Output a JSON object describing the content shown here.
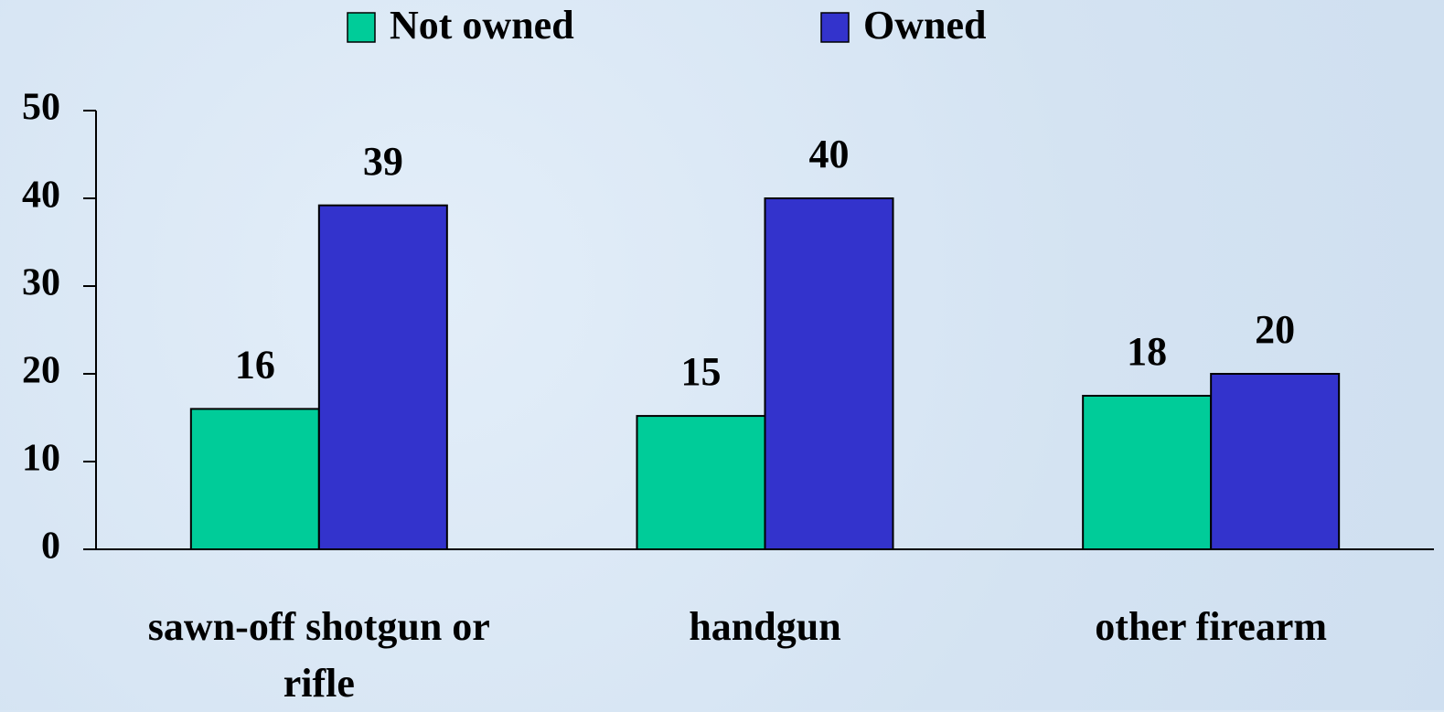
{
  "chart_data": {
    "type": "bar",
    "categories": [
      "sawn-off shotgun or rifle",
      "handgun",
      "other firearm"
    ],
    "series": [
      {
        "name": "Not owned",
        "color": "#00cc99",
        "values": [
          16,
          15.2,
          17.5
        ],
        "value_labels": [
          "16",
          "15",
          "18"
        ]
      },
      {
        "name": "Owned",
        "color": "#3333cc",
        "values": [
          39.2,
          40,
          20
        ],
        "value_labels": [
          "39",
          "40",
          "20"
        ]
      }
    ],
    "ylim": [
      0,
      50
    ],
    "yticks": [
      0,
      10,
      20,
      30,
      40,
      50
    ],
    "legend": "top"
  }
}
